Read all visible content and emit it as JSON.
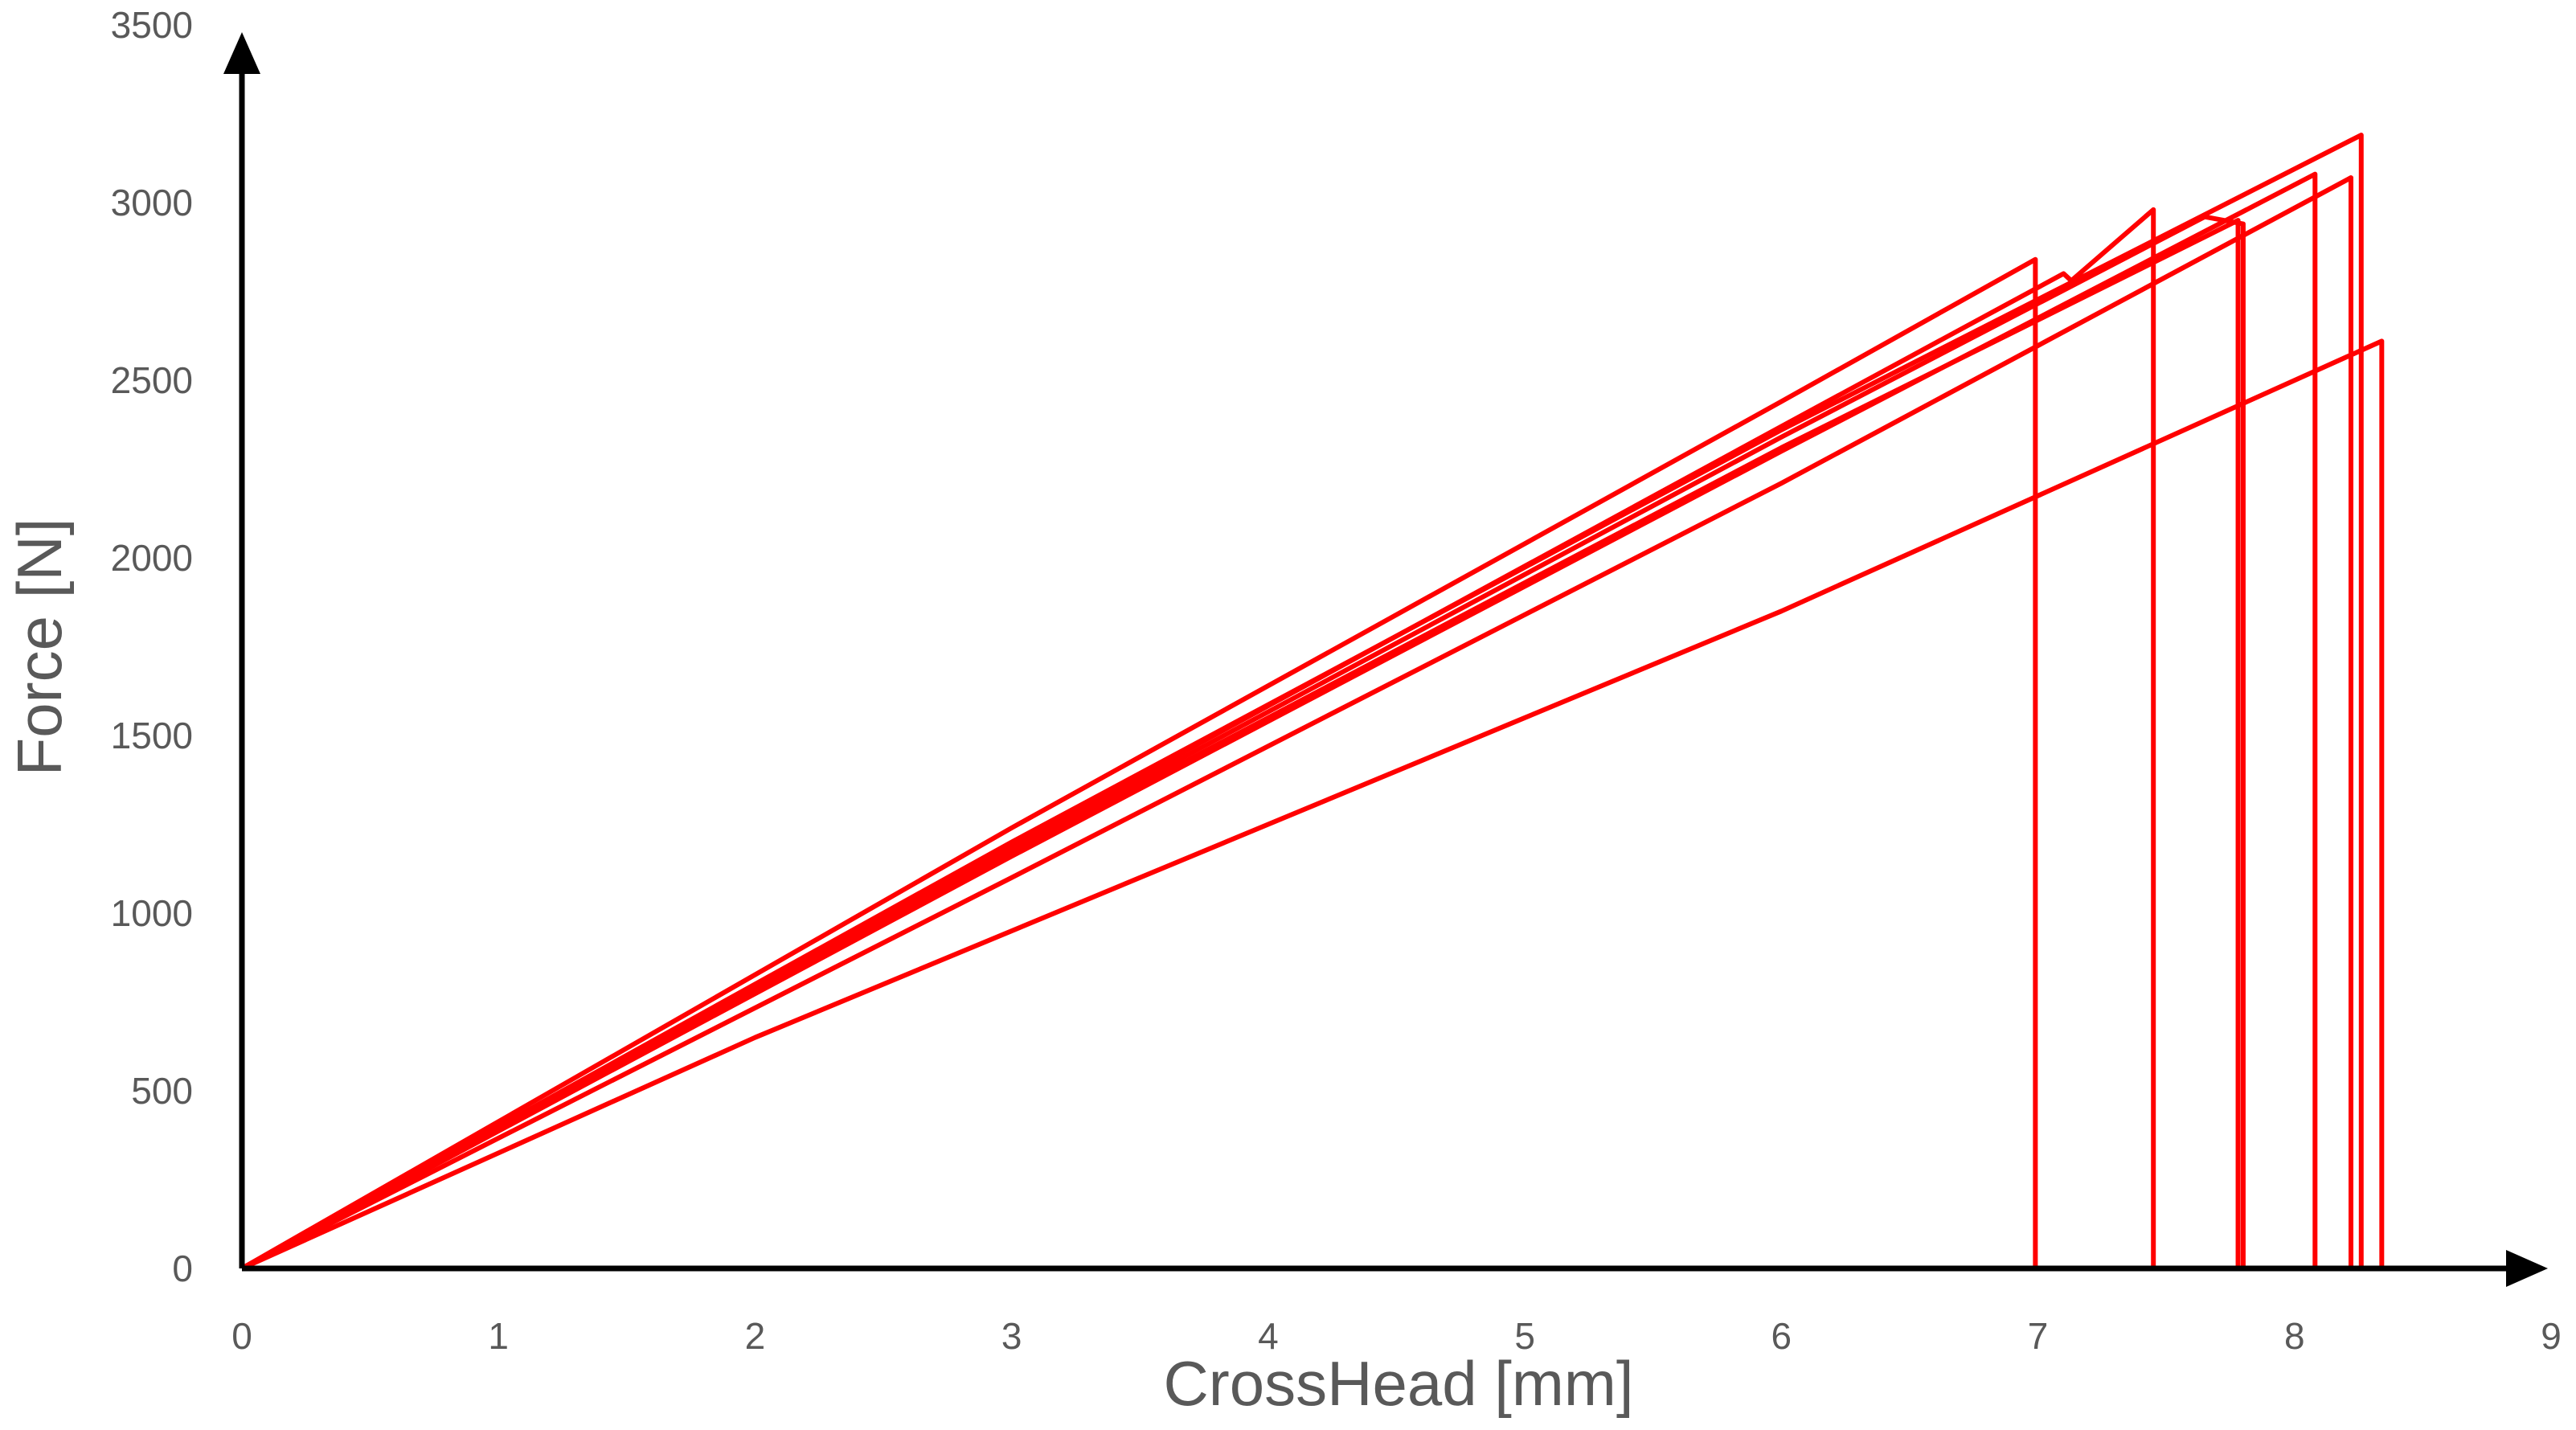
{
  "chart_data": {
    "type": "line",
    "title": "",
    "xlabel": "CrossHead [mm]",
    "ylabel": "Force [N]",
    "xlim": [
      0,
      9
    ],
    "ylim": [
      0,
      3500
    ],
    "xticks": [
      "0",
      "1",
      "2",
      "3",
      "4",
      "5",
      "6",
      "7",
      "8",
      "9"
    ],
    "yticks": [
      "0",
      "500",
      "1000",
      "1500",
      "2000",
      "2500",
      "3000",
      "3500"
    ],
    "grid": false,
    "legend": "none",
    "series_color": "#ff0000",
    "series": [
      {
        "x": [
          0,
          3,
          6,
          6.99,
          6.99
        ],
        "y": [
          0,
          1240,
          2440,
          2840,
          0
        ]
      },
      {
        "x": [
          0,
          3,
          6,
          7.1,
          7.13,
          7.45,
          7.45
        ],
        "y": [
          0,
          1190,
          2370,
          2800,
          2780,
          2980,
          0
        ]
      },
      {
        "x": [
          0,
          3,
          6,
          7.78,
          7.78
        ],
        "y": [
          0,
          1170,
          2310,
          2950,
          0
        ]
      },
      {
        "x": [
          0,
          3,
          6,
          7.65,
          7.8,
          7.8
        ],
        "y": [
          0,
          1180,
          2340,
          2960,
          2940,
          0
        ]
      },
      {
        "x": [
          0,
          3,
          6,
          8.08,
          8.08
        ],
        "y": [
          0,
          1160,
          2300,
          3080,
          0
        ]
      },
      {
        "x": [
          0,
          3,
          6,
          8.22,
          8.22
        ],
        "y": [
          0,
          1100,
          2210,
          3070,
          0
        ]
      },
      {
        "x": [
          0,
          3,
          6,
          8.26,
          8.26
        ],
        "y": [
          0,
          1200,
          2360,
          3190,
          0
        ]
      },
      {
        "x": [
          0,
          2,
          4,
          6,
          8.34,
          8.34
        ],
        "y": [
          0,
          650,
          1250,
          1850,
          2610,
          0
        ]
      }
    ]
  }
}
